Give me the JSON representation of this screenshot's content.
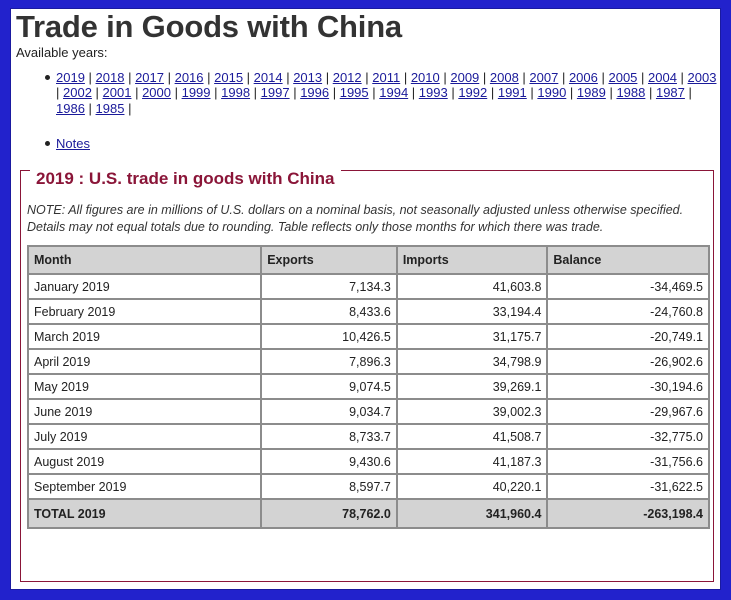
{
  "title": "Trade in Goods with China",
  "available_years_label": "Available years:",
  "years": [
    "2019",
    "2018",
    "2017",
    "2016",
    "2015",
    "2014",
    "2013",
    "2012",
    "2011",
    "2010",
    "2009",
    "2008",
    "2007",
    "2006",
    "2005",
    "2004",
    "2003",
    "2002",
    "2001",
    "2000",
    "1999",
    "1998",
    "1997",
    "1996",
    "1995",
    "1994",
    "1993",
    "1992",
    "1991",
    "1990",
    "1989",
    "1988",
    "1987",
    "1986",
    "1985"
  ],
  "notes_link": "Notes",
  "section_title": "2019 : U.S. trade in goods with China",
  "note_text": "NOTE: All figures are in millions of U.S. dollars on a nominal basis, not seasonally adjusted unless otherwise specified. Details may not equal totals due to rounding. Table reflects only those months for which there was trade.",
  "table": {
    "headers": [
      "Month",
      "Exports",
      "Imports",
      "Balance"
    ],
    "rows": [
      [
        "January 2019",
        "7,134.3",
        "41,603.8",
        "-34,469.5"
      ],
      [
        "February 2019",
        "8,433.6",
        "33,194.4",
        "-24,760.8"
      ],
      [
        "March 2019",
        "10,426.5",
        "31,175.7",
        "-20,749.1"
      ],
      [
        "April 2019",
        "7,896.3",
        "34,798.9",
        "-26,902.6"
      ],
      [
        "May 2019",
        "9,074.5",
        "39,269.1",
        "-30,194.6"
      ],
      [
        "June 2019",
        "9,034.7",
        "39,002.3",
        "-29,967.6"
      ],
      [
        "July 2019",
        "8,733.7",
        "41,508.7",
        "-32,775.0"
      ],
      [
        "August 2019",
        "9,430.6",
        "41,187.3",
        "-31,756.6"
      ],
      [
        "September 2019",
        "8,597.7",
        "40,220.1",
        "-31,622.5"
      ]
    ],
    "total": [
      "TOTAL 2019",
      "78,762.0",
      "341,960.4",
      "-263,198.4"
    ]
  },
  "colors": {
    "frame": "#2222cc",
    "accent": "#8a1538",
    "header_bg": "#d3d3d3",
    "link": "#1a1a9a"
  }
}
